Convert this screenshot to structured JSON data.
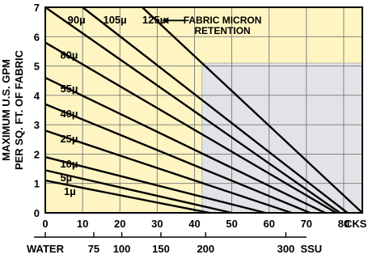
{
  "chart_data": {
    "type": "line",
    "title": "",
    "ylabel_lines": [
      "MAXIMUM U.S. GPM",
      "PER SQ. FT. OF FABRIC"
    ],
    "xlabel": "CKS",
    "secondary_axis": {
      "label": "SSU",
      "ticks": [
        {
          "label": "WATER",
          "cks": 0
        },
        {
          "label": "75",
          "cks": 13
        },
        {
          "label": "100",
          "cks": 20.5
        },
        {
          "label": "150",
          "cks": 31
        },
        {
          "label": "200",
          "cks": 43
        },
        {
          "label": "300",
          "cks": 64.5
        }
      ]
    },
    "xlim": [
      0,
      85
    ],
    "ylim": [
      0,
      7
    ],
    "xticks": [
      0,
      10,
      20,
      30,
      40,
      50,
      60,
      70,
      80
    ],
    "yticks": [
      0,
      1,
      2,
      3,
      4,
      5,
      6,
      7
    ],
    "grid": true,
    "colors": {
      "background": "#fef5c2",
      "shaded_region": "#e2e3e7",
      "lines": "#000000"
    },
    "shaded_region": {
      "x": [
        42,
        85
      ],
      "y": [
        0,
        5.1
      ]
    },
    "annotation": [
      "FABRIC MICRON",
      "RETENTION"
    ],
    "series": [
      {
        "name": "1µ",
        "label_pos": [
          5,
          0.6
        ],
        "points": [
          [
            0,
            1.1
          ],
          [
            44,
            0
          ]
        ]
      },
      {
        "name": "5µ",
        "label_pos": [
          4,
          1.07
        ],
        "points": [
          [
            0,
            1.45
          ],
          [
            50,
            0
          ]
        ]
      },
      {
        "name": "10µ",
        "label_pos": [
          4,
          1.55
        ],
        "points": [
          [
            0,
            1.9
          ],
          [
            59,
            0
          ]
        ]
      },
      {
        "name": "25µ",
        "label_pos": [
          4,
          2.4
        ],
        "points": [
          [
            0,
            2.8
          ],
          [
            66,
            0
          ]
        ]
      },
      {
        "name": "40µ",
        "label_pos": [
          4,
          3.25
        ],
        "points": [
          [
            0,
            3.7
          ],
          [
            71,
            0
          ]
        ]
      },
      {
        "name": "55µ",
        "label_pos": [
          4,
          4.1
        ],
        "points": [
          [
            0,
            4.6
          ],
          [
            75,
            0
          ]
        ]
      },
      {
        "name": "80µ",
        "label_pos": [
          4,
          5.25
        ],
        "points": [
          [
            0,
            5.8
          ],
          [
            78,
            0
          ]
        ]
      },
      {
        "name": "90µ",
        "label_pos": [
          6,
          6.45
        ],
        "points": [
          [
            0,
            7
          ],
          [
            79,
            0
          ]
        ]
      },
      {
        "name": "105µ",
        "label_pos": [
          15.5,
          6.45
        ],
        "points": [
          [
            10,
            7
          ],
          [
            81,
            0
          ]
        ]
      },
      {
        "name": "125µ",
        "label_pos": [
          26,
          6.45
        ],
        "points": [
          [
            26,
            7
          ],
          [
            85,
            0
          ]
        ]
      }
    ]
  }
}
